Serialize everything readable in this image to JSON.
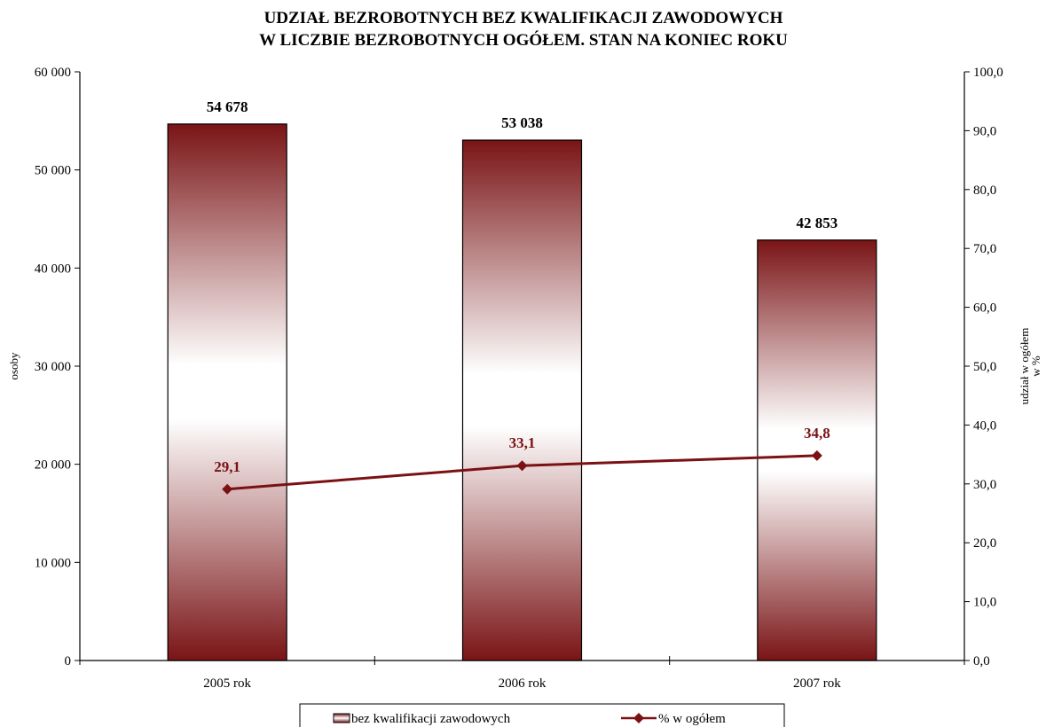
{
  "chart_data": {
    "type": "bar",
    "title_lines": [
      "UDZIAŁ BEZROBOTNYCH BEZ KWALIFIKACJI ZAWODOWYCH",
      "W LICZBIE BEZROBOTNYCH OGÓŁEM. STAN NA KONIEC ROKU"
    ],
    "categories": [
      "2005 rok",
      "2006 rok",
      "2007 rok"
    ],
    "ylabel": "osoby",
    "y2label_lines": [
      "udział w ogółem",
      "w %"
    ],
    "ylim": [
      0,
      60000
    ],
    "y2lim": [
      0,
      100
    ],
    "y_ticks": [
      0,
      10000,
      20000,
      30000,
      40000,
      50000,
      60000
    ],
    "y_tick_labels": [
      "0",
      "10 000",
      "20 000",
      "30 000",
      "40 000",
      "50 000",
      "60 000"
    ],
    "y2_ticks": [
      0,
      10,
      20,
      30,
      40,
      50,
      60,
      70,
      80,
      90,
      100
    ],
    "y2_tick_labels": [
      "0,0",
      "10,0",
      "20,0",
      "30,0",
      "40,0",
      "50,0",
      "60,0",
      "70,0",
      "80,0",
      "90,0",
      "100,0"
    ],
    "series": [
      {
        "name": "bez kwalifikacji zawodowych",
        "kind": "bar",
        "axis": "left",
        "values": [
          54678,
          53038,
          42853
        ],
        "value_labels": [
          "54 678",
          "53 038",
          "42 853"
        ]
      },
      {
        "name": "% w ogółem",
        "kind": "line",
        "axis": "right",
        "values": [
          29.1,
          33.1,
          34.8
        ],
        "value_labels": [
          "29,1",
          "33,1",
          "34,8"
        ]
      }
    ],
    "grid": false,
    "legend_position": "bottom"
  },
  "colors": {
    "bar_dark": "#7a1416",
    "bar_light": "#ffffff",
    "line": "#7b1113",
    "axis": "#000000"
  }
}
